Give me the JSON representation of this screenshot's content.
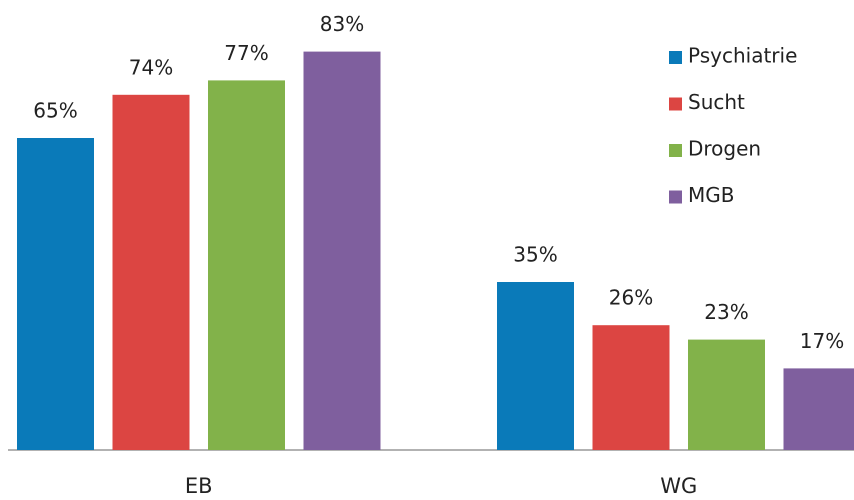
{
  "chart_data": {
    "type": "bar",
    "categories": [
      "EB",
      "WG"
    ],
    "series": [
      {
        "name": "Psychiatrie",
        "color": "#0a7ab9",
        "values": [
          65,
          35
        ],
        "value_labels": [
          "65%",
          "35%"
        ]
      },
      {
        "name": "Sucht",
        "color": "#dc4542",
        "values": [
          74,
          26
        ],
        "value_labels": [
          "74%",
          "26%"
        ]
      },
      {
        "name": "Drogen",
        "color": "#82b24a",
        "values": [
          77,
          23
        ],
        "value_labels": [
          "77%",
          "23%"
        ]
      },
      {
        "name": "MGB",
        "color": "#7f5f9e",
        "values": [
          83,
          17
        ],
        "value_labels": [
          "83%",
          "17%"
        ]
      }
    ],
    "legend": "upper right"
  }
}
